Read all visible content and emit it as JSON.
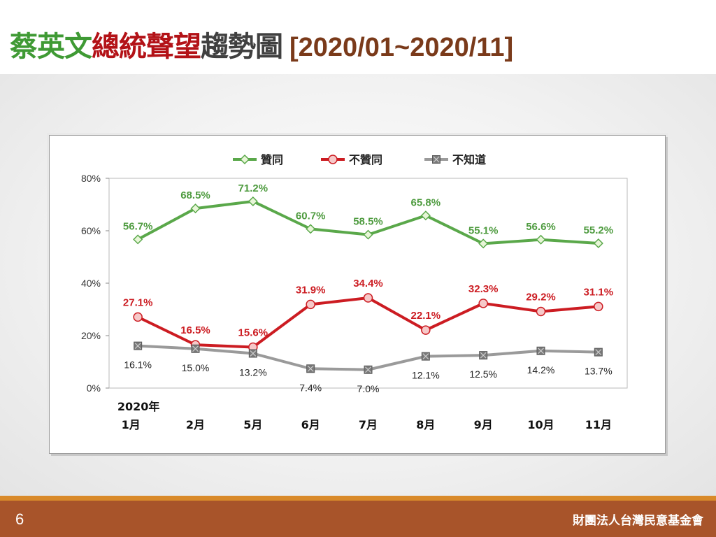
{
  "slide": {
    "title_part1": "蔡英文",
    "title_part2": "總統聲望",
    "title_part3": "趨勢圖",
    "title_range": "[2020/01~2020/11]",
    "page_number": "6",
    "organization": "財團法人台灣民意基金會"
  },
  "colors": {
    "approve": "#5aa84a",
    "disapprove": "#cc1c22",
    "unknown": "#9a9a9a",
    "title_green": "#3f9a34",
    "title_red": "#b31217",
    "footer": "#a8542a",
    "footer_line": "#d98a2a"
  },
  "chart_data": {
    "type": "line",
    "categories": [
      "2020年\n1月",
      "2月",
      "5月",
      "6月",
      "7月",
      "8月",
      "9月",
      "10月",
      "11月"
    ],
    "ylim": [
      0,
      80
    ],
    "yticks": [
      "0%",
      "20%",
      "40%",
      "60%",
      "80%"
    ],
    "ytick_values": [
      0,
      20,
      40,
      60,
      80
    ],
    "grid": false,
    "legend_position": "top",
    "series": [
      {
        "name": "贊同",
        "color": "#5aa84a",
        "marker": "diamond",
        "values": [
          56.7,
          68.5,
          71.2,
          60.7,
          58.5,
          65.8,
          55.1,
          56.6,
          55.2
        ],
        "labels": [
          "56.7%",
          "68.5%",
          "71.2%",
          "60.7%",
          "58.5%",
          "65.8%",
          "55.1%",
          "56.6%",
          "55.2%"
        ]
      },
      {
        "name": "不贊同",
        "color": "#cc1c22",
        "marker": "circle",
        "values": [
          27.1,
          16.5,
          15.6,
          31.9,
          34.4,
          22.1,
          32.3,
          29.2,
          31.1
        ],
        "labels": [
          "27.1%",
          "16.5%",
          "15.6%",
          "31.9%",
          "34.4%",
          "22.1%",
          "32.3%",
          "29.2%",
          "31.1%"
        ]
      },
      {
        "name": "不知道",
        "color": "#9a9a9a",
        "marker": "square-x",
        "values": [
          16.1,
          15.0,
          13.2,
          7.4,
          7.0,
          12.1,
          12.5,
          14.2,
          13.7
        ],
        "labels": [
          "16.1%",
          "15.0%",
          "13.2%",
          "7.4%",
          "7.0%",
          "12.1%",
          "12.5%",
          "14.2%",
          "13.7%"
        ]
      }
    ]
  }
}
